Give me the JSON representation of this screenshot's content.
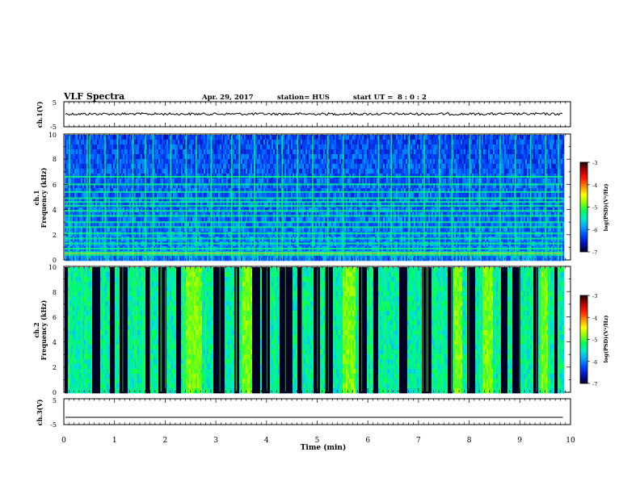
{
  "header": {
    "title": "VLF Spectra",
    "date": "Apr. 29, 2017",
    "station": "station= HUS",
    "start_label": "start  UT =",
    "start_time": "8 : 0 : 2"
  },
  "colorbar": {
    "label": "log(PSD)(V²/Hz)",
    "ticks": [
      "-3",
      "-4",
      "-5",
      "-6",
      "-7"
    ],
    "stops": [
      "#1a0000",
      "#b20000",
      "#ff1a00",
      "#ff8c00",
      "#ffff00",
      "#8cff00",
      "#00ff5a",
      "#00e5d0",
      "#00a0ff",
      "#0046ff",
      "#0010b4",
      "#000024"
    ]
  },
  "chart_data": [
    {
      "type": "line",
      "panel": "ch1-waveform",
      "ylabel": "ch.1(V)",
      "yticks": [
        "5",
        "-5"
      ],
      "ylim": [
        -5,
        5
      ],
      "xlim": [
        0,
        10
      ],
      "series": [
        {
          "values_level": 0.1
        }
      ]
    },
    {
      "type": "heatmap",
      "panel": "ch1-spectrogram",
      "ylabel_top": "ch.1",
      "ylabel": "Frequency (kHz)",
      "yticks": [
        "10",
        "8",
        "6",
        "4",
        "2",
        "0"
      ],
      "ylim": [
        0,
        10
      ],
      "xlim": [
        0,
        9.85
      ],
      "background_level": -6.3,
      "horizontal_bands_khz": [
        0.4,
        0.6,
        0.9,
        1.3,
        1.7,
        2.1,
        2.6,
        3.0,
        3.5,
        3.9,
        4.3,
        4.6,
        4.9,
        5.4,
        6.0,
        6.6
      ],
      "stroke_times_min": [
        0.1,
        0.45,
        0.5,
        0.8,
        1.05,
        1.35,
        1.6,
        1.75,
        2.1,
        2.4,
        2.6,
        2.9,
        3.3,
        3.45,
        3.75,
        4.2,
        4.3,
        4.6,
        4.9,
        5.2,
        5.5,
        6.2,
        6.45,
        6.8,
        7.1,
        7.4,
        7.65,
        8.0,
        8.2,
        8.6,
        8.9,
        9.2,
        9.5,
        9.75
      ]
    },
    {
      "type": "heatmap",
      "panel": "ch2-spectrogram",
      "ylabel_top": "ch.2",
      "ylabel": "Frequency (kHz)",
      "yticks": [
        "10",
        "8",
        "6",
        "4",
        "2",
        "0"
      ],
      "ylim": [
        0,
        10
      ],
      "xlim": [
        0,
        9.85
      ],
      "background_level": -5.4,
      "quiet_intervals_min": [
        [
          0.0,
          0.05
        ],
        [
          0.55,
          0.7
        ],
        [
          0.9,
          1.0
        ],
        [
          1.1,
          1.25
        ],
        [
          1.6,
          1.7
        ],
        [
          1.85,
          2.0
        ],
        [
          2.2,
          2.3
        ],
        [
          2.95,
          3.15
        ],
        [
          3.35,
          3.45
        ],
        [
          3.7,
          3.85
        ],
        [
          3.9,
          4.05
        ],
        [
          4.25,
          4.5
        ],
        [
          4.6,
          4.7
        ],
        [
          4.9,
          5.05
        ],
        [
          5.15,
          5.3
        ],
        [
          5.8,
          5.95
        ],
        [
          6.1,
          6.2
        ],
        [
          6.6,
          6.75
        ],
        [
          7.05,
          7.25
        ],
        [
          7.55,
          7.65
        ],
        [
          7.95,
          8.1
        ],
        [
          8.6,
          8.75
        ],
        [
          8.85,
          9.0
        ],
        [
          9.25,
          9.35
        ],
        [
          9.65,
          9.72
        ]
      ],
      "intense_intervals_min": [
        [
          2.4,
          2.7
        ],
        [
          3.5,
          3.7
        ],
        [
          5.5,
          5.75
        ],
        [
          7.7,
          7.85
        ],
        [
          8.25,
          8.45
        ],
        [
          9.4,
          9.55
        ]
      ]
    },
    {
      "type": "line",
      "panel": "ch3-waveform",
      "ylabel": "ch.3(V)",
      "yticks": [
        "5",
        "-5"
      ],
      "ylim": [
        -5,
        5
      ],
      "xlim": [
        0,
        10
      ],
      "series": [
        {
          "values_level": -2.2
        }
      ]
    }
  ],
  "xaxis": {
    "label": "Time (min)",
    "ticks": [
      "0",
      "1",
      "2",
      "3",
      "4",
      "5",
      "6",
      "7",
      "8",
      "9",
      "10"
    ],
    "range": [
      0,
      10
    ]
  }
}
